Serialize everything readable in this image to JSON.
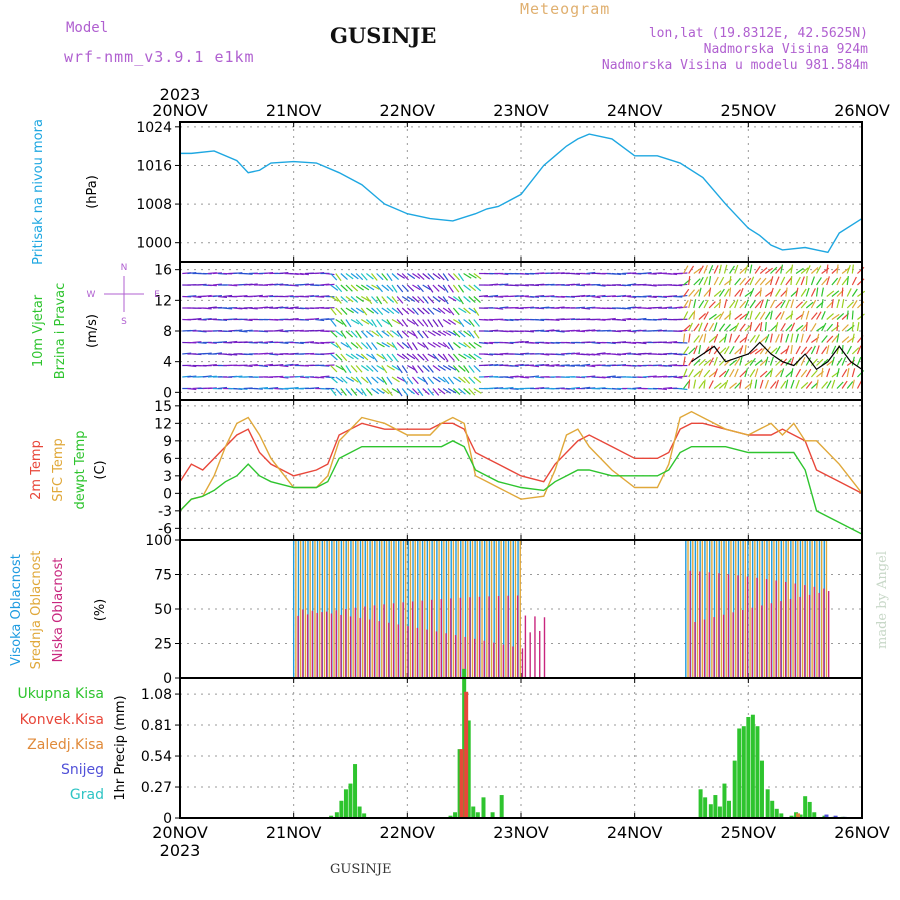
{
  "header": {
    "model_label": "Model",
    "model_name": "wrf-nmm_v3.9.1 e1km",
    "title": "GUSINJE",
    "meteogram_label": "Meteogram",
    "lonlat": "lon,lat (19.8312E, 42.5625N)",
    "elevation": "Nadmorska Visina 924m",
    "model_elevation": "Nadmorska Visina u modelu 981.584m",
    "footer_title": "GUSINJE",
    "credit": "made by Angel"
  },
  "colors": {
    "pressure": "#1ea7e1",
    "temp2m": "#e8473a",
    "sfc_temp": "#e0a83a",
    "dewpoint": "#2ec42e",
    "high_cloud": "#1e9be0",
    "mid_cloud": "#e0a83a",
    "low_cloud": "#c8267e",
    "total_precip": "#2ec42e",
    "conv_precip": "#e8473a",
    "frozen_precip": "#e08a3a",
    "snow": "#5050d8",
    "graupel": "#2ec4c4",
    "wind_speed": "#000000",
    "gust": "#e8473a",
    "header_purple": "#b060d0",
    "header_orange": "#e0b070"
  },
  "time_axis": {
    "year": "2023",
    "ticks": [
      "20NOV",
      "21NOV",
      "22NOV",
      "23NOV",
      "24NOV",
      "25NOV",
      "26NOV"
    ]
  },
  "chart_data": [
    {
      "panel": "pressure",
      "type": "line",
      "ylabel_lines": [
        "Pritisak na nivou mora",
        "(hPa)"
      ],
      "ylim": [
        996,
        1025
      ],
      "yticks": [
        1000,
        1008,
        1016,
        1024
      ],
      "x": [
        0,
        0.1,
        0.3,
        0.5,
        0.6,
        0.7,
        0.8,
        1.0,
        1.2,
        1.4,
        1.6,
        1.8,
        2.0,
        2.2,
        2.4,
        2.6,
        2.7,
        2.8,
        3.0,
        3.2,
        3.3,
        3.4,
        3.5,
        3.6,
        3.8,
        4.0,
        4.2,
        4.4,
        4.6,
        4.8,
        5.0,
        5.1,
        5.2,
        5.3,
        5.5,
        5.6,
        5.7,
        5.8,
        6.0
      ],
      "series": [
        {
          "values": [
            1018.5,
            1018.5,
            1019,
            1017,
            1014.5,
            1015,
            1016.5,
            1016.8,
            1016.5,
            1014.5,
            1012,
            1008,
            1006,
            1005,
            1004.5,
            1006,
            1007,
            1007.5,
            1010,
            1016,
            1018,
            1020,
            1021.5,
            1022.5,
            1021.5,
            1018,
            1018,
            1016.5,
            1013.5,
            1008,
            1003,
            1001.5,
            999.5,
            998.5,
            999,
            998.5,
            998,
            1002,
            1005
          ]
        }
      ]
    },
    {
      "panel": "wind",
      "type": "line",
      "ylabel_lines": [
        "10m Vjetar",
        "Brzina i Pravac",
        "(m/s)"
      ],
      "compass": {
        "north": "N",
        "west": "W",
        "east": "E",
        "south": "S"
      },
      "ylim": [
        -1,
        17
      ],
      "yticks": [
        0,
        4,
        8,
        12,
        16
      ],
      "x": [
        4.5,
        4.6,
        4.7,
        4.8,
        4.9,
        5.0,
        5.1,
        5.2,
        5.3,
        5.4,
        5.5,
        5.6,
        5.7,
        5.8,
        5.9,
        6.0
      ],
      "series": [
        {
          "values": [
            4,
            5,
            6,
            4,
            4.5,
            5,
            6.5,
            5,
            4,
            3.5,
            5,
            3,
            4,
            6,
            4,
            3
          ]
        }
      ]
    },
    {
      "panel": "temperature",
      "type": "line",
      "ylabel_lines": [
        "2m Temp",
        "SFC Temp",
        "dewpt Temp",
        "(C)"
      ],
      "ylim": [
        -8,
        16
      ],
      "yticks": [
        -6,
        -3,
        0,
        3,
        6,
        9,
        12,
        15
      ],
      "x": [
        0,
        0.1,
        0.2,
        0.3,
        0.4,
        0.5,
        0.6,
        0.7,
        0.8,
        1.0,
        1.2,
        1.3,
        1.4,
        1.6,
        1.8,
        2.0,
        2.2,
        2.3,
        2.4,
        2.5,
        2.6,
        2.7,
        2.8,
        3.0,
        3.2,
        3.3,
        3.4,
        3.5,
        3.6,
        3.8,
        4.0,
        4.2,
        4.3,
        4.4,
        4.5,
        4.6,
        4.8,
        5.0,
        5.2,
        5.3,
        5.4,
        5.5,
        5.6,
        5.8,
        6.0
      ],
      "series": [
        {
          "name": "2m Temp",
          "values": [
            2,
            5,
            4,
            6,
            8,
            10,
            11,
            7,
            5,
            3,
            4,
            5,
            10,
            12,
            11,
            11,
            11,
            12,
            12,
            11,
            7,
            6,
            5,
            3,
            2,
            5,
            7,
            9,
            10,
            8,
            6,
            6,
            7,
            11,
            12,
            12,
            11,
            10,
            10,
            11,
            10,
            9,
            4,
            2,
            0
          ]
        },
        {
          "name": "SFC Temp",
          "values": [
            -3,
            -1,
            -0.5,
            3,
            8,
            12,
            13,
            10,
            6,
            1,
            1,
            3,
            9,
            13,
            12,
            10,
            10,
            12,
            13,
            12,
            3,
            2,
            1,
            -1,
            -0.5,
            4,
            10,
            11,
            8,
            4,
            1,
            1,
            5,
            13,
            14,
            13,
            11,
            10,
            12,
            10,
            12,
            9,
            9,
            5,
            0
          ]
        },
        {
          "name": "dewpt Temp",
          "values": [
            -3,
            -1,
            -0.5,
            0.5,
            2,
            3,
            5,
            3,
            2,
            1,
            1,
            2,
            6,
            8,
            8,
            8,
            8,
            8,
            9,
            8,
            4,
            3,
            2,
            1,
            0.5,
            2,
            3,
            4,
            4,
            3,
            3,
            3,
            4,
            7,
            8,
            8,
            8,
            7,
            7,
            7,
            7,
            4,
            -3,
            -5,
            -7
          ]
        }
      ]
    },
    {
      "panel": "cloud",
      "type": "bar",
      "ylabel_lines": [
        "Visoka Oblacnost",
        "Srednja Oblacnost",
        "Niska Oblacnost",
        "(%)"
      ],
      "ylim": [
        0,
        100
      ],
      "yticks": [
        0,
        25,
        50,
        75,
        100
      ],
      "series": [
        {
          "name": "Visoka Oblacnost",
          "ranges": [
            [
              1.0,
              3.0,
              100
            ],
            [
              4.45,
              5.7,
              100
            ]
          ]
        },
        {
          "name": "Srednja Oblacnost",
          "ranges": [
            [
              1.0,
              3.0,
              100
            ],
            [
              4.45,
              5.7,
              100
            ]
          ]
        },
        {
          "name": "Niska Oblacnost",
          "ranges": [
            [
              1.0,
              3.0,
              60
            ],
            [
              3.0,
              3.2,
              50
            ],
            [
              4.45,
              5.7,
              80
            ]
          ]
        }
      ]
    },
    {
      "panel": "precip",
      "type": "bar",
      "ylabel_lines": [
        "1hr Precip (mm)"
      ],
      "legend": [
        "Ukupna Kisa",
        "Konvek.Kisa",
        "Zaledj.Kisa",
        "Snijeg",
        "Grad"
      ],
      "ylim": [
        0,
        1.22
      ],
      "yticks": [
        0,
        0.27,
        0.54,
        0.81,
        1.08
      ],
      "x": [
        1.33,
        1.38,
        1.42,
        1.46,
        1.5,
        1.54,
        1.58,
        1.62,
        2.38,
        2.42,
        2.46,
        2.5,
        2.54,
        2.58,
        2.62,
        2.67,
        2.75,
        2.83,
        4.58,
        4.62,
        4.67,
        4.71,
        4.75,
        4.79,
        4.83,
        4.88,
        4.92,
        4.96,
        5.0,
        5.04,
        5.08,
        5.12,
        5.17,
        5.21,
        5.25,
        5.29,
        5.38,
        5.42,
        5.46,
        5.5,
        5.54,
        5.58,
        5.67,
        5.75,
        5.83
      ],
      "series": [
        {
          "name": "Ukupna Kisa",
          "values": [
            0.02,
            0.05,
            0.15,
            0.25,
            0.3,
            0.47,
            0.1,
            0.04,
            0.02,
            0.05,
            0.6,
            1.3,
            0.85,
            0.1,
            0.05,
            0.18,
            0.05,
            0.2,
            0.25,
            0.18,
            0.12,
            0.2,
            0.1,
            0.3,
            0.15,
            0.5,
            0.78,
            0.8,
            0.88,
            0.9,
            0.8,
            0.5,
            0.25,
            0.15,
            0.08,
            0.04,
            0.02,
            0.05,
            0.03,
            0.19,
            0.14,
            0.05,
            0.02,
            0.01,
            0.01
          ]
        },
        {
          "name": "Konvek.Kisa",
          "values": [
            0,
            0,
            0,
            0,
            0,
            0,
            0,
            0,
            0,
            0,
            0.6,
            1.1,
            0,
            0,
            0,
            0,
            0,
            0,
            0,
            0,
            0,
            0,
            0,
            0,
            0,
            0,
            0,
            0,
            0,
            0,
            0,
            0,
            0,
            0,
            0,
            0,
            0,
            0,
            0,
            0,
            0,
            0,
            0,
            0,
            0
          ]
        },
        {
          "name": "Zaledj.Kisa",
          "values": [
            0,
            0,
            0,
            0,
            0,
            0,
            0,
            0,
            0,
            0,
            0,
            0,
            0,
            0,
            0,
            0,
            0,
            0,
            0,
            0,
            0,
            0,
            0,
            0,
            0,
            0,
            0,
            0,
            0,
            0,
            0,
            0,
            0,
            0,
            0,
            0,
            0,
            0.04,
            0,
            0,
            0,
            0,
            0,
            0,
            0
          ]
        },
        {
          "name": "Snijeg",
          "values": [
            0,
            0,
            0,
            0,
            0,
            0,
            0,
            0,
            0,
            0,
            0,
            0,
            0,
            0,
            0,
            0,
            0,
            0,
            0,
            0,
            0,
            0,
            0,
            0,
            0,
            0,
            0,
            0,
            0,
            0,
            0,
            0,
            0,
            0,
            0,
            0,
            0,
            0,
            0,
            0,
            0,
            0,
            0.03,
            0.02,
            0.01
          ]
        },
        {
          "name": "Grad",
          "values": [
            0,
            0,
            0,
            0,
            0,
            0,
            0,
            0,
            0,
            0,
            0,
            0,
            0,
            0,
            0,
            0,
            0,
            0,
            0,
            0,
            0,
            0,
            0,
            0,
            0,
            0,
            0,
            0,
            0,
            0,
            0,
            0,
            0,
            0,
            0,
            0,
            0,
            0,
            0,
            0,
            0,
            0,
            0,
            0,
            0
          ]
        }
      ]
    }
  ]
}
